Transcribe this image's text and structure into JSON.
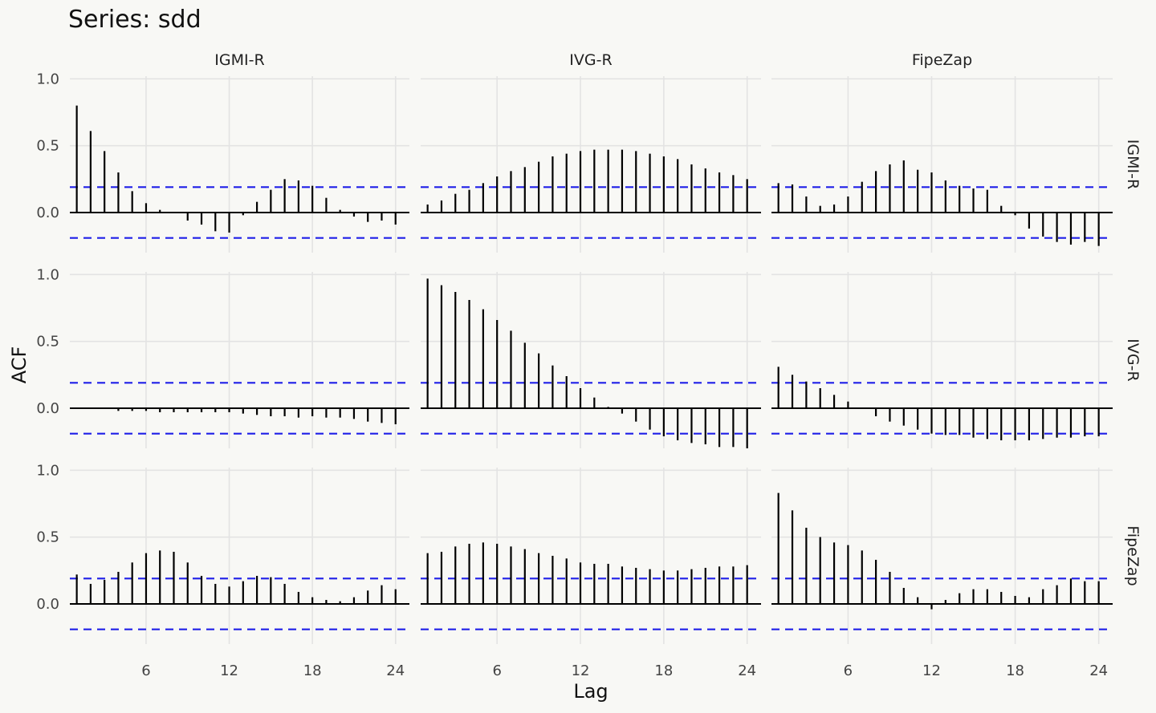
{
  "chart_data": {
    "type": "bar",
    "title": "Series: sdd",
    "xlabel": "Lag",
    "ylabel": "ACF",
    "series_names": [
      "IGMI-R",
      "IVG-R",
      "FipeZap"
    ],
    "column_labels": [
      "IGMI-R",
      "IVG-R",
      "FipeZap"
    ],
    "row_labels": [
      "IGMI-R",
      "IVG-R",
      "FipeZap"
    ],
    "lags": [
      1,
      2,
      3,
      4,
      5,
      6,
      7,
      8,
      9,
      10,
      11,
      12,
      13,
      14,
      15,
      16,
      17,
      18,
      19,
      20,
      21,
      22,
      23,
      24
    ],
    "x_ticks": [
      6,
      12,
      18,
      24
    ],
    "y_ticks": [
      0.0,
      0.5,
      1.0
    ],
    "y_tick_labels": [
      "0.0",
      "0.5",
      "1.0"
    ],
    "x_tick_labels": [
      "6",
      "12",
      "18",
      "24"
    ],
    "ylim": [
      -0.3,
      1.02
    ],
    "xlim": [
      0.5,
      25
    ],
    "confidence_bound": 0.19,
    "colors": {
      "bar": "#000000",
      "confidence": "#1f1fe8",
      "background": "#f8f8f5",
      "grid": "#e3e3e3"
    },
    "panels": [
      [
        {
          "row": "IGMI-R",
          "col": "IGMI-R",
          "values": [
            0.8,
            0.61,
            0.46,
            0.3,
            0.16,
            0.07,
            0.02,
            0.0,
            -0.06,
            -0.09,
            -0.14,
            -0.15,
            -0.02,
            0.08,
            0.17,
            0.25,
            0.24,
            0.2,
            0.11,
            0.02,
            -0.03,
            -0.07,
            -0.06,
            -0.09
          ]
        },
        {
          "row": "IGMI-R",
          "col": "IVG-R",
          "values": [
            0.06,
            0.09,
            0.14,
            0.17,
            0.22,
            0.27,
            0.31,
            0.34,
            0.38,
            0.42,
            0.44,
            0.46,
            0.47,
            0.47,
            0.47,
            0.46,
            0.44,
            0.42,
            0.4,
            0.36,
            0.33,
            0.3,
            0.28,
            0.25
          ]
        },
        {
          "row": "IGMI-R",
          "col": "FipeZap",
          "values": [
            0.22,
            0.21,
            0.12,
            0.05,
            0.06,
            0.12,
            0.23,
            0.31,
            0.36,
            0.39,
            0.32,
            0.3,
            0.24,
            0.2,
            0.18,
            0.17,
            0.05,
            -0.02,
            -0.12,
            -0.18,
            -0.22,
            -0.24,
            -0.22,
            -0.25
          ]
        }
      ],
      [
        {
          "row": "IVG-R",
          "col": "IGMI-R",
          "values": [
            0.0,
            0.0,
            0.0,
            -0.02,
            -0.02,
            -0.02,
            -0.03,
            -0.03,
            -0.03,
            -0.03,
            -0.03,
            -0.03,
            -0.04,
            -0.05,
            -0.06,
            -0.06,
            -0.07,
            -0.06,
            -0.07,
            -0.07,
            -0.08,
            -0.1,
            -0.11,
            -0.12
          ]
        },
        {
          "row": "IVG-R",
          "col": "IVG-R",
          "values": [
            0.97,
            0.92,
            0.87,
            0.81,
            0.74,
            0.66,
            0.58,
            0.49,
            0.41,
            0.32,
            0.24,
            0.15,
            0.08,
            0.01,
            -0.04,
            -0.1,
            -0.16,
            -0.21,
            -0.24,
            -0.26,
            -0.27,
            -0.29,
            -0.29,
            -0.3
          ]
        },
        {
          "row": "IVG-R",
          "col": "FipeZap",
          "values": [
            0.31,
            0.25,
            0.2,
            0.15,
            0.1,
            0.05,
            0.0,
            -0.06,
            -0.1,
            -0.13,
            -0.16,
            -0.19,
            -0.2,
            -0.2,
            -0.22,
            -0.23,
            -0.24,
            -0.24,
            -0.24,
            -0.23,
            -0.22,
            -0.22,
            -0.21,
            -0.21
          ]
        }
      ],
      [
        {
          "row": "FipeZap",
          "col": "IGMI-R",
          "values": [
            0.22,
            0.15,
            0.18,
            0.24,
            0.31,
            0.38,
            0.4,
            0.39,
            0.31,
            0.21,
            0.15,
            0.13,
            0.17,
            0.21,
            0.2,
            0.15,
            0.09,
            0.05,
            0.03,
            0.02,
            0.05,
            0.1,
            0.14,
            0.11
          ]
        },
        {
          "row": "FipeZap",
          "col": "IVG-R",
          "values": [
            0.38,
            0.39,
            0.43,
            0.45,
            0.46,
            0.45,
            0.43,
            0.41,
            0.38,
            0.36,
            0.34,
            0.31,
            0.3,
            0.3,
            0.28,
            0.27,
            0.26,
            0.25,
            0.25,
            0.26,
            0.27,
            0.28,
            0.28,
            0.29
          ]
        },
        {
          "row": "FipeZap",
          "col": "FipeZap",
          "values": [
            0.83,
            0.7,
            0.57,
            0.5,
            0.46,
            0.44,
            0.4,
            0.33,
            0.24,
            0.12,
            0.05,
            -0.04,
            0.03,
            0.08,
            0.11,
            0.11,
            0.09,
            0.06,
            0.05,
            0.11,
            0.14,
            0.19,
            0.17,
            0.17
          ]
        }
      ]
    ]
  }
}
